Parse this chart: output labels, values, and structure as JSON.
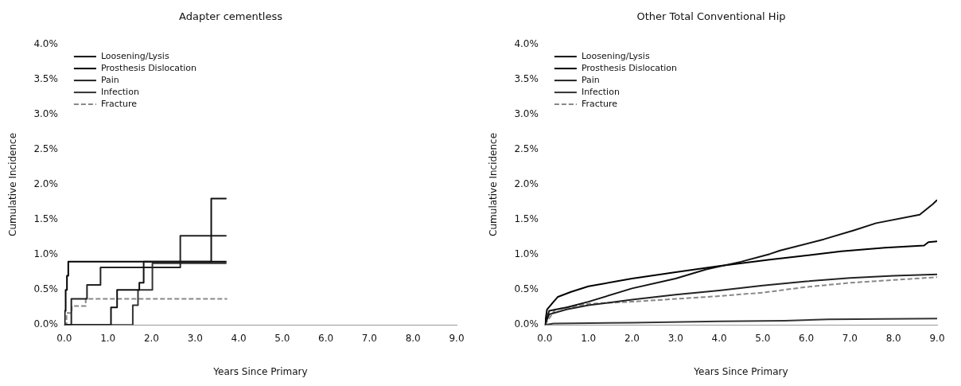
{
  "chart_data": [
    {
      "type": "step",
      "title": "Adapter cementless",
      "xlabel": "Years Since Primary",
      "ylabel": "Cumulative Incidence",
      "legend": "top left",
      "xlim": [
        0,
        9
      ],
      "xticks": [
        {
          "value": 0,
          "label": "0.0"
        },
        {
          "value": 1,
          "label": "1.0"
        },
        {
          "value": 2,
          "label": "2.0"
        },
        {
          "value": 3,
          "label": "3.0"
        },
        {
          "value": 4,
          "label": "4.0"
        },
        {
          "value": 5,
          "label": "5.0"
        },
        {
          "value": 6,
          "label": "6.0"
        },
        {
          "value": 7,
          "label": "7.0"
        },
        {
          "value": 8,
          "label": "8.0"
        },
        {
          "value": 9,
          "label": "9.0"
        }
      ],
      "ylim": [
        0,
        4
      ],
      "yticks": [
        {
          "value": 0,
          "label": "0.0%"
        },
        {
          "value": 0.5,
          "label": "0.5%"
        },
        {
          "value": 1,
          "label": "1.0%"
        },
        {
          "value": 1.5,
          "label": "1.5%"
        },
        {
          "value": 2,
          "label": "2.0%"
        },
        {
          "value": 2.5,
          "label": "2.5%"
        },
        {
          "value": 3,
          "label": "3.0%"
        },
        {
          "value": 3.5,
          "label": "3.5%"
        },
        {
          "value": 4,
          "label": "4.0%"
        }
      ],
      "series": [
        {
          "name": "Loosening/Lysis",
          "color": "#111111",
          "x": [
            0,
            1.07,
            1.21,
            1.72,
            1.82,
            3.37,
            3.72
          ],
          "values": [
            0,
            0.25,
            0.5,
            0.6,
            0.9,
            1.8,
            1.8
          ]
        },
        {
          "name": "Prosthesis Dislocation",
          "color": "#000000",
          "x": [
            0,
            0.01,
            0.03,
            0.06,
            0.09,
            3.72
          ],
          "values": [
            0,
            0.2,
            0.5,
            0.7,
            0.9,
            0.9
          ]
        },
        {
          "name": "Pain",
          "color": "#222222",
          "x": [
            0,
            0.16,
            0.52,
            0.83,
            2.66,
            3.72
          ],
          "values": [
            0,
            0.37,
            0.57,
            0.82,
            1.27,
            1.27
          ]
        },
        {
          "name": "Infection",
          "color": "#333333",
          "x": [
            0,
            1.57,
            1.69,
            2.02,
            3.72
          ],
          "values": [
            0,
            0.28,
            0.5,
            0.88,
            0.88
          ]
        },
        {
          "name": "Fracture",
          "color": "#888888",
          "line_style": "dashed",
          "x": [
            0,
            0.05,
            0.17,
            0.49,
            3.72
          ],
          "values": [
            0,
            0.17,
            0.27,
            0.37,
            0.36
          ]
        }
      ]
    },
    {
      "type": "line",
      "title": "Other Total Conventional Hip",
      "xlabel": "Years Since Primary",
      "ylabel": "Cumulative Incidence",
      "legend": "top left",
      "xlim": [
        0,
        9
      ],
      "xticks": [
        {
          "value": 0,
          "label": "0.0"
        },
        {
          "value": 1,
          "label": "1.0"
        },
        {
          "value": 2,
          "label": "2.0"
        },
        {
          "value": 3,
          "label": "3.0"
        },
        {
          "value": 4,
          "label": "4.0"
        },
        {
          "value": 5,
          "label": "5.0"
        },
        {
          "value": 6,
          "label": "6.0"
        },
        {
          "value": 7,
          "label": "7.0"
        },
        {
          "value": 8,
          "label": "8.0"
        },
        {
          "value": 9,
          "label": "9.0"
        }
      ],
      "ylim": [
        0,
        4
      ],
      "yticks": [
        {
          "value": 0,
          "label": "0.0%"
        },
        {
          "value": 0.5,
          "label": "0.5%"
        },
        {
          "value": 1,
          "label": "1.0%"
        },
        {
          "value": 1.5,
          "label": "1.5%"
        },
        {
          "value": 2,
          "label": "2.0%"
        },
        {
          "value": 2.5,
          "label": "2.5%"
        },
        {
          "value": 3,
          "label": "3.0%"
        },
        {
          "value": 3.5,
          "label": "3.5%"
        },
        {
          "value": 4,
          "label": "4.0%"
        }
      ],
      "series": [
        {
          "name": "Loosening/Lysis",
          "color": "#111111",
          "x": [
            0,
            0.1,
            0.5,
            1,
            2,
            3,
            3.7,
            4.5,
            5.16,
            5.4,
            6.4,
            7.1,
            7.6,
            8.6,
            8.9,
            9
          ],
          "values": [
            0,
            0.2,
            0.25,
            0.33,
            0.52,
            0.66,
            0.79,
            0.9,
            1.01,
            1.06,
            1.22,
            1.35,
            1.45,
            1.57,
            1.72,
            1.78
          ]
        },
        {
          "name": "Prosthesis Dislocation",
          "color": "#000000",
          "x": [
            0,
            0.05,
            0.2,
            0.3,
            0.6,
            1,
            2,
            3,
            4,
            5.16,
            6,
            6.8,
            7.8,
            8.7,
            8.8,
            9
          ],
          "values": [
            0,
            0.22,
            0.33,
            0.4,
            0.47,
            0.55,
            0.66,
            0.75,
            0.84,
            0.93,
            0.99,
            1.05,
            1.1,
            1.13,
            1.18,
            1.19
          ]
        },
        {
          "name": "Pain",
          "color": "#222222",
          "x": [
            0,
            0.1,
            0.5,
            1,
            2,
            3,
            4,
            5,
            6,
            7,
            8,
            9
          ],
          "values": [
            0,
            0.15,
            0.22,
            0.28,
            0.36,
            0.43,
            0.49,
            0.56,
            0.62,
            0.67,
            0.7,
            0.72
          ]
        },
        {
          "name": "Infection",
          "color": "#333333",
          "x": [
            0,
            0.2,
            2,
            4,
            5.5,
            6.5,
            9
          ],
          "values": [
            0,
            0.02,
            0.03,
            0.05,
            0.06,
            0.08,
            0.09
          ]
        },
        {
          "name": "Fracture",
          "color": "#888888",
          "line_style": "dashed",
          "x": [
            0,
            0.24,
            1,
            2,
            3,
            4,
            5,
            6,
            7,
            8,
            9
          ],
          "values": [
            0,
            0.22,
            0.3,
            0.33,
            0.37,
            0.41,
            0.46,
            0.54,
            0.6,
            0.64,
            0.68
          ]
        }
      ]
    }
  ]
}
